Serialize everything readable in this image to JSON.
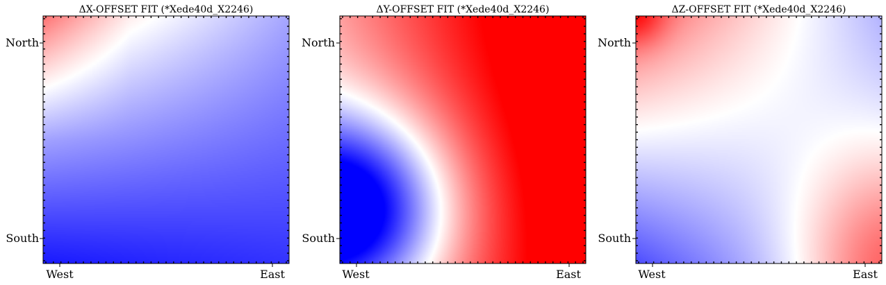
{
  "chart_data": [
    {
      "type": "heatmap",
      "title": "ΔX-OFFSET FIT (*Xede40d_X2246)",
      "xticks": [
        "West",
        "East"
      ],
      "yticks": [
        "North",
        "South"
      ],
      "colormap": [
        "#0000ff",
        "#ffffff",
        "#ff0000"
      ],
      "value_range": [
        -1,
        1
      ],
      "surface": "x_offset"
    },
    {
      "type": "heatmap",
      "title": "ΔY-OFFSET FIT (*Xede40d_X2246)",
      "xticks": [
        "West",
        "East"
      ],
      "yticks": [
        "North",
        "South"
      ],
      "colormap": [
        "#0000ff",
        "#ffffff",
        "#ff0000"
      ],
      "value_range": [
        -1,
        1
      ],
      "surface": "y_offset"
    },
    {
      "type": "heatmap",
      "title": "ΔZ-OFFSET FIT (*Xede40d_X2246)",
      "xticks": [
        "West",
        "East"
      ],
      "yticks": [
        "North",
        "South"
      ],
      "colormap": [
        "#0000ff",
        "#ffffff",
        "#ff0000"
      ],
      "value_range": [
        -1,
        1
      ],
      "surface": "z_offset"
    }
  ]
}
